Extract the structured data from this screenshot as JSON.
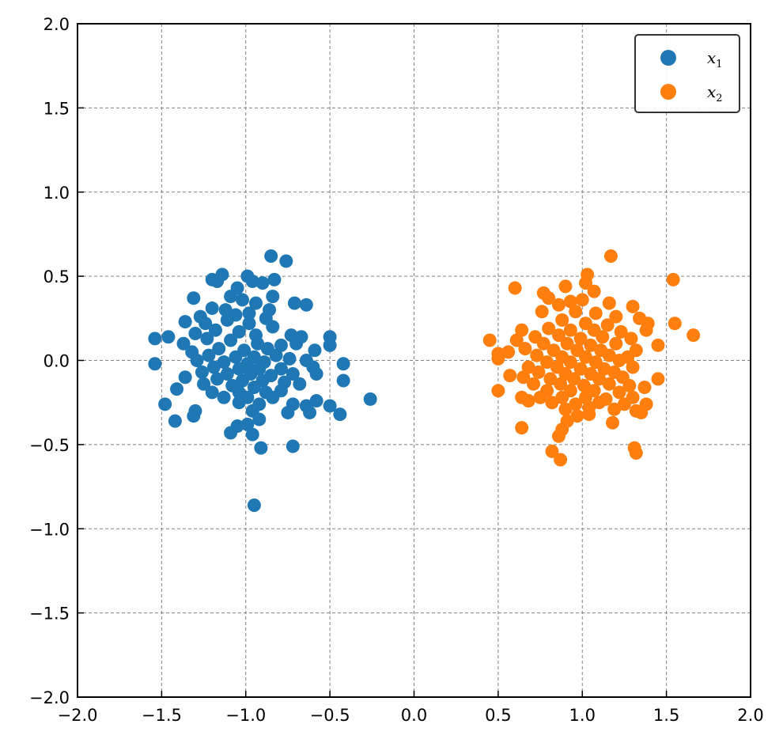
{
  "chart_data": {
    "type": "scatter",
    "title": "",
    "xlabel": "",
    "ylabel": "",
    "xlim": [
      -2.0,
      2.0
    ],
    "ylim": [
      -2.0,
      2.0
    ],
    "grid": true,
    "legend_position": "top-right",
    "x_ticks": [
      -2.0,
      -1.5,
      -1.0,
      -0.5,
      0.0,
      0.5,
      1.0,
      1.5,
      2.0
    ],
    "y_ticks": [
      -2.0,
      -1.5,
      -1.0,
      -0.5,
      0.0,
      0.5,
      1.0,
      1.5,
      2.0
    ],
    "x_tick_labels": [
      "−2.0",
      "−1.5",
      "−1.0",
      "−0.5",
      "0.0",
      "0.5",
      "1.0",
      "1.5",
      "2.0"
    ],
    "y_tick_labels": [
      "−2.0",
      "−1.5",
      "−1.0",
      "−0.5",
      "0.0",
      "0.5",
      "1.0",
      "1.5",
      "2.0"
    ],
    "series": [
      {
        "name": "x",
        "subscript": "1",
        "color": "#1f77b4",
        "points": [
          [
            -0.85,
            0.62
          ],
          [
            -0.76,
            0.59
          ],
          [
            -1.14,
            0.51
          ],
          [
            -0.99,
            0.5
          ],
          [
            -1.2,
            0.48
          ],
          [
            -0.83,
            0.48
          ],
          [
            -0.96,
            0.47
          ],
          [
            -0.9,
            0.46
          ],
          [
            -1.17,
            0.47
          ],
          [
            -1.05,
            0.43
          ],
          [
            -1.09,
            0.38
          ],
          [
            -1.31,
            0.37
          ],
          [
            -1.02,
            0.36
          ],
          [
            -0.84,
            0.38
          ],
          [
            -0.94,
            0.34
          ],
          [
            -0.71,
            0.34
          ],
          [
            -0.64,
            0.33
          ],
          [
            -1.2,
            0.31
          ],
          [
            -1.12,
            0.3
          ],
          [
            -0.98,
            0.28
          ],
          [
            -0.86,
            0.3
          ],
          [
            -1.06,
            0.27
          ],
          [
            -1.27,
            0.26
          ],
          [
            -1.24,
            0.22
          ],
          [
            -0.88,
            0.25
          ],
          [
            -1.36,
            0.23
          ],
          [
            -1.11,
            0.24
          ],
          [
            -0.98,
            0.22
          ],
          [
            -0.84,
            0.2
          ],
          [
            -1.18,
            0.18
          ],
          [
            -1.04,
            0.17
          ],
          [
            -1.3,
            0.16
          ],
          [
            -0.94,
            0.15
          ],
          [
            -0.73,
            0.15
          ],
          [
            -1.23,
            0.13
          ],
          [
            -0.67,
            0.14
          ],
          [
            -1.46,
            0.14
          ],
          [
            -1.54,
            0.13
          ],
          [
            -0.5,
            0.14
          ],
          [
            -1.37,
            0.1
          ],
          [
            -1.09,
            0.12
          ],
          [
            -0.93,
            0.1
          ],
          [
            -0.79,
            0.09
          ],
          [
            -0.7,
            0.1
          ],
          [
            -1.16,
            0.07
          ],
          [
            -1.01,
            0.06
          ],
          [
            -0.87,
            0.07
          ],
          [
            -1.32,
            0.05
          ],
          [
            -0.5,
            0.09
          ],
          [
            -0.59,
            0.06
          ],
          [
            -1.22,
            0.03
          ],
          [
            -1.06,
            0.02
          ],
          [
            -0.95,
            0.02
          ],
          [
            -0.82,
            0.03
          ],
          [
            -0.74,
            0.01
          ],
          [
            -1.29,
            0.0
          ],
          [
            -1.13,
            -0.01
          ],
          [
            -0.99,
            -0.02
          ],
          [
            -0.89,
            -0.01
          ],
          [
            -0.64,
            0.0
          ],
          [
            -1.54,
            -0.02
          ],
          [
            -0.42,
            -0.02
          ],
          [
            -1.19,
            -0.04
          ],
          [
            -1.04,
            -0.05
          ],
          [
            -0.92,
            -0.05
          ],
          [
            -0.79,
            -0.05
          ],
          [
            -0.6,
            -0.04
          ],
          [
            -1.26,
            -0.07
          ],
          [
            -1.11,
            -0.08
          ],
          [
            -0.97,
            -0.08
          ],
          [
            -0.85,
            -0.09
          ],
          [
            -0.72,
            -0.08
          ],
          [
            -1.36,
            -0.1
          ],
          [
            -0.58,
            -0.08
          ],
          [
            -1.17,
            -0.11
          ],
          [
            -1.02,
            -0.12
          ],
          [
            -0.9,
            -0.12
          ],
          [
            -0.77,
            -0.13
          ],
          [
            -0.42,
            -0.12
          ],
          [
            -1.25,
            -0.14
          ],
          [
            -1.08,
            -0.15
          ],
          [
            -0.95,
            -0.16
          ],
          [
            -0.68,
            -0.14
          ],
          [
            -1.41,
            -0.17
          ],
          [
            -1.2,
            -0.19
          ],
          [
            -1.04,
            -0.19
          ],
          [
            -0.88,
            -0.19
          ],
          [
            -0.79,
            -0.18
          ],
          [
            -1.13,
            -0.22
          ],
          [
            -0.99,
            -0.22
          ],
          [
            -0.84,
            -0.22
          ],
          [
            -0.26,
            -0.23
          ],
          [
            -0.58,
            -0.24
          ],
          [
            -1.48,
            -0.26
          ],
          [
            -1.04,
            -0.25
          ],
          [
            -0.92,
            -0.26
          ],
          [
            -0.72,
            -0.26
          ],
          [
            -0.64,
            -0.27
          ],
          [
            -0.5,
            -0.27
          ],
          [
            -1.3,
            -0.3
          ],
          [
            -0.96,
            -0.3
          ],
          [
            -0.75,
            -0.31
          ],
          [
            -1.31,
            -0.33
          ],
          [
            -0.62,
            -0.31
          ],
          [
            -0.44,
            -0.32
          ],
          [
            -0.92,
            -0.35
          ],
          [
            -1.42,
            -0.36
          ],
          [
            -0.99,
            -0.38
          ],
          [
            -1.05,
            -0.39
          ],
          [
            -1.09,
            -0.43
          ],
          [
            -0.96,
            -0.44
          ],
          [
            -0.72,
            -0.51
          ],
          [
            -0.91,
            -0.52
          ],
          [
            -0.95,
            -0.86
          ]
        ]
      },
      {
        "name": "x",
        "subscript": "2",
        "color": "#ff7f0e",
        "points": [
          [
            1.17,
            0.62
          ],
          [
            1.03,
            0.51
          ],
          [
            1.54,
            0.48
          ],
          [
            1.02,
            0.46
          ],
          [
            0.6,
            0.43
          ],
          [
            0.9,
            0.44
          ],
          [
            1.07,
            0.41
          ],
          [
            0.77,
            0.4
          ],
          [
            0.8,
            0.37
          ],
          [
            0.93,
            0.35
          ],
          [
            1.0,
            0.36
          ],
          [
            1.16,
            0.34
          ],
          [
            0.86,
            0.33
          ],
          [
            1.3,
            0.32
          ],
          [
            0.96,
            0.29
          ],
          [
            0.76,
            0.29
          ],
          [
            1.08,
            0.28
          ],
          [
            1.2,
            0.26
          ],
          [
            1.34,
            0.25
          ],
          [
            0.88,
            0.24
          ],
          [
            1.02,
            0.22
          ],
          [
            1.15,
            0.21
          ],
          [
            1.39,
            0.22
          ],
          [
            1.55,
            0.22
          ],
          [
            0.64,
            0.18
          ],
          [
            0.8,
            0.19
          ],
          [
            0.93,
            0.18
          ],
          [
            1.07,
            0.18
          ],
          [
            1.23,
            0.17
          ],
          [
            1.38,
            0.18
          ],
          [
            0.72,
            0.14
          ],
          [
            0.86,
            0.15
          ],
          [
            0.99,
            0.13
          ],
          [
            1.12,
            0.14
          ],
          [
            1.29,
            0.13
          ],
          [
            1.66,
            0.15
          ],
          [
            0.45,
            0.12
          ],
          [
            0.61,
            0.12
          ],
          [
            0.77,
            0.1
          ],
          [
            0.91,
            0.1
          ],
          [
            1.05,
            0.09
          ],
          [
            1.2,
            0.1
          ],
          [
            1.45,
            0.09
          ],
          [
            0.66,
            0.07
          ],
          [
            0.83,
            0.06
          ],
          [
            0.97,
            0.06
          ],
          [
            1.11,
            0.06
          ],
          [
            1.32,
            0.06
          ],
          [
            0.5,
            0.04
          ],
          [
            0.56,
            0.05
          ],
          [
            0.73,
            0.03
          ],
          [
            0.88,
            0.02
          ],
          [
            1.02,
            0.02
          ],
          [
            1.16,
            0.03
          ],
          [
            1.27,
            0.02
          ],
          [
            0.5,
            0.01
          ],
          [
            0.79,
            -0.01
          ],
          [
            0.93,
            -0.01
          ],
          [
            1.08,
            -0.01
          ],
          [
            1.22,
            0.0
          ],
          [
            0.68,
            -0.04
          ],
          [
            0.85,
            -0.04
          ],
          [
            0.99,
            -0.05
          ],
          [
            1.13,
            -0.05
          ],
          [
            1.3,
            -0.04
          ],
          [
            0.74,
            -0.07
          ],
          [
            0.9,
            -0.08
          ],
          [
            1.05,
            -0.08
          ],
          [
            1.19,
            -0.07
          ],
          [
            0.57,
            -0.09
          ],
          [
            0.65,
            -0.1
          ],
          [
            0.81,
            -0.11
          ],
          [
            0.95,
            -0.11
          ],
          [
            1.1,
            -0.11
          ],
          [
            1.24,
            -0.1
          ],
          [
            1.45,
            -0.11
          ],
          [
            0.71,
            -0.14
          ],
          [
            0.87,
            -0.14
          ],
          [
            1.01,
            -0.15
          ],
          [
            1.16,
            -0.14
          ],
          [
            1.28,
            -0.15
          ],
          [
            0.5,
            -0.18
          ],
          [
            0.79,
            -0.18
          ],
          [
            0.93,
            -0.18
          ],
          [
            1.07,
            -0.18
          ],
          [
            1.22,
            -0.19
          ],
          [
            1.37,
            -0.16
          ],
          [
            0.64,
            -0.22
          ],
          [
            0.75,
            -0.22
          ],
          [
            0.88,
            -0.22
          ],
          [
            1.02,
            -0.22
          ],
          [
            1.14,
            -0.23
          ],
          [
            1.3,
            -0.22
          ],
          [
            0.68,
            -0.24
          ],
          [
            0.82,
            -0.25
          ],
          [
            0.96,
            -0.26
          ],
          [
            1.1,
            -0.25
          ],
          [
            1.25,
            -0.26
          ],
          [
            1.38,
            -0.26
          ],
          [
            0.9,
            -0.29
          ],
          [
            1.04,
            -0.28
          ],
          [
            1.19,
            -0.29
          ],
          [
            1.32,
            -0.3
          ],
          [
            0.97,
            -0.33
          ],
          [
            1.04,
            -0.32
          ],
          [
            1.35,
            -0.31
          ],
          [
            0.91,
            -0.36
          ],
          [
            1.18,
            -0.37
          ],
          [
            0.64,
            -0.4
          ],
          [
            0.88,
            -0.41
          ],
          [
            0.86,
            -0.45
          ],
          [
            1.31,
            -0.52
          ],
          [
            0.82,
            -0.54
          ],
          [
            1.32,
            -0.55
          ],
          [
            0.87,
            -0.59
          ]
        ]
      }
    ]
  }
}
